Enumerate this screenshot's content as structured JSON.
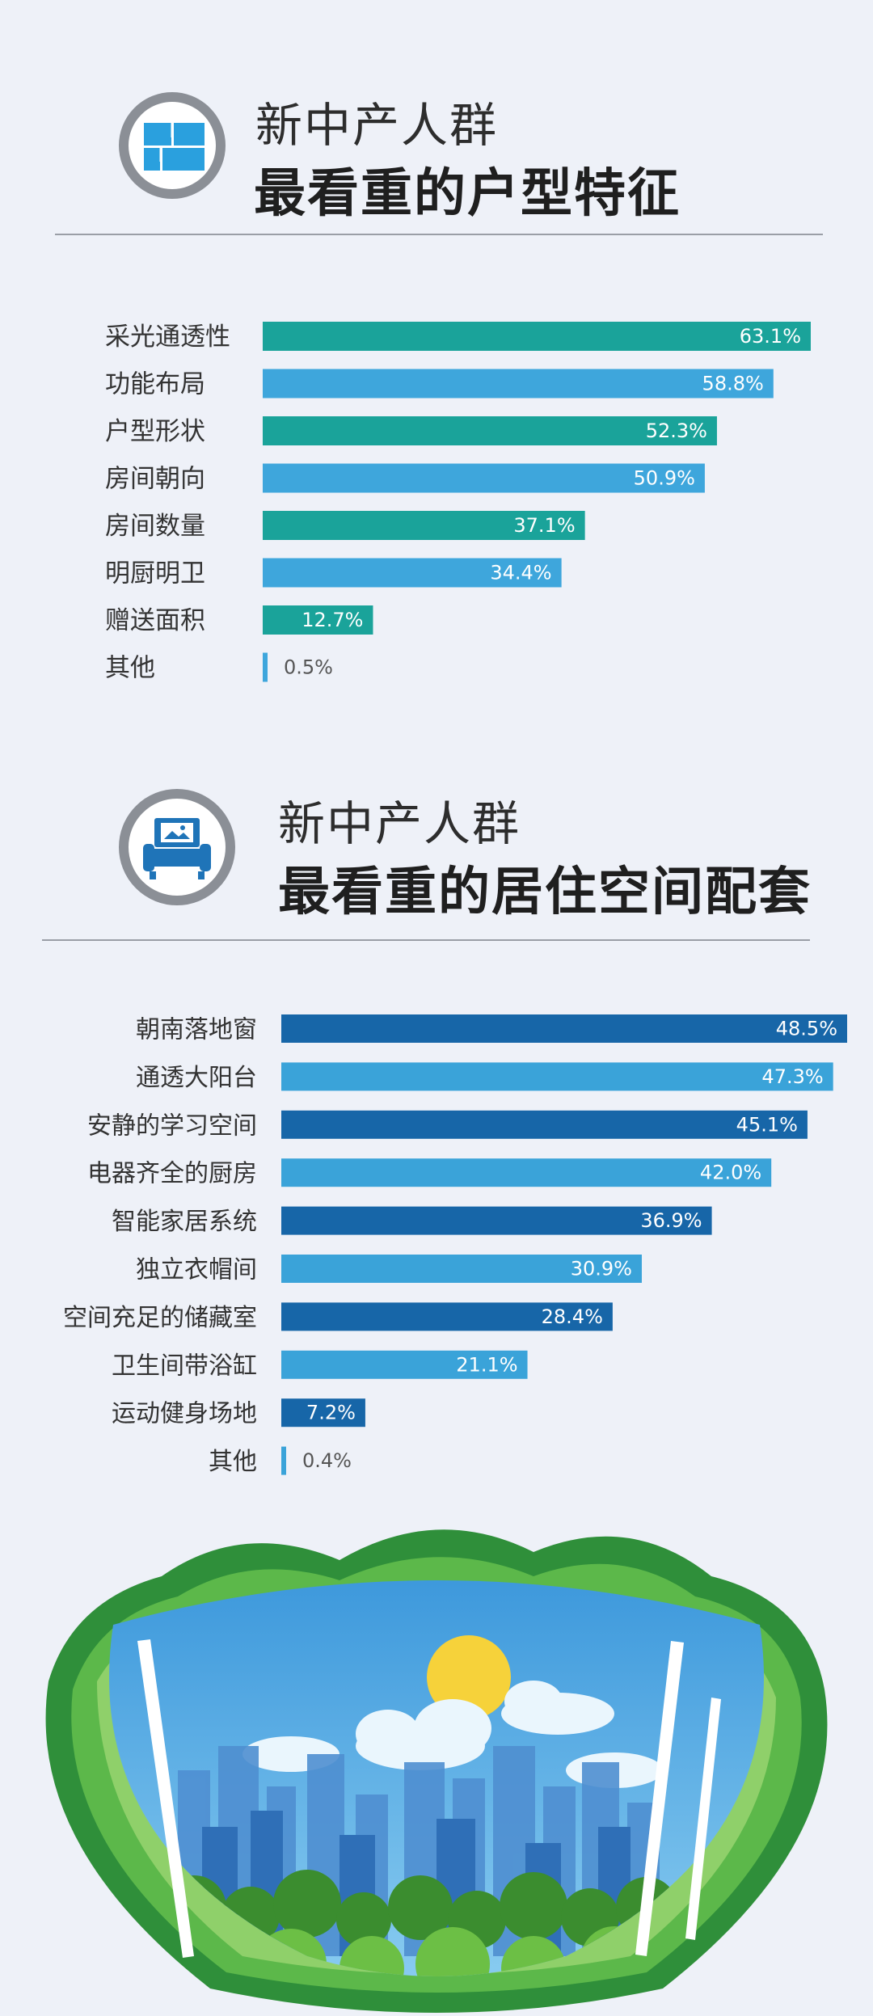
{
  "sections": [
    {
      "title_line1": "新中产人群",
      "title_line2": "最看重的户型特征",
      "icon": "floorplan-icon"
    },
    {
      "title_line1": "新中产人群",
      "title_line2": "最看重的居住空间配套",
      "icon": "armchair-icon"
    }
  ],
  "chart_data": [
    {
      "type": "bar",
      "orientation": "horizontal",
      "categories": [
        "采光通透性",
        "功能布局",
        "户型形状",
        "房间朝向",
        "房间数量",
        "明厨明卫",
        "赠送面积",
        "其他"
      ],
      "values": [
        63.1,
        58.8,
        52.3,
        50.9,
        37.1,
        34.4,
        12.7,
        0.5
      ],
      "value_labels": [
        "63.1%",
        "58.8%",
        "52.3%",
        "50.9%",
        "37.1%",
        "34.4%",
        "12.7%",
        "0.5%"
      ],
      "colors": [
        "#1aa39a",
        "#3ea6dc"
      ],
      "xlim": [
        0,
        63.1
      ]
    },
    {
      "type": "bar",
      "orientation": "horizontal",
      "categories": [
        "朝南落地窗",
        "通透大阳台",
        "安静的学习空间",
        "电器齐全的厨房",
        "智能家居系统",
        "独立衣帽间",
        "空间充足的储藏室",
        "卫生间带浴缸",
        "运动健身场地",
        "其他"
      ],
      "values": [
        48.5,
        47.3,
        45.1,
        42.0,
        36.9,
        30.9,
        28.4,
        21.1,
        7.2,
        0.4
      ],
      "value_labels": [
        "48.5%",
        "47.3%",
        "45.1%",
        "42.0%",
        "36.9%",
        "30.9%",
        "28.4%",
        "21.1%",
        "7.2%",
        "0.4%"
      ],
      "colors": [
        "#1766a8",
        "#3aa3d9"
      ],
      "xlim": [
        0,
        48.5
      ]
    }
  ],
  "illustration": "paper-cut-city-forest"
}
